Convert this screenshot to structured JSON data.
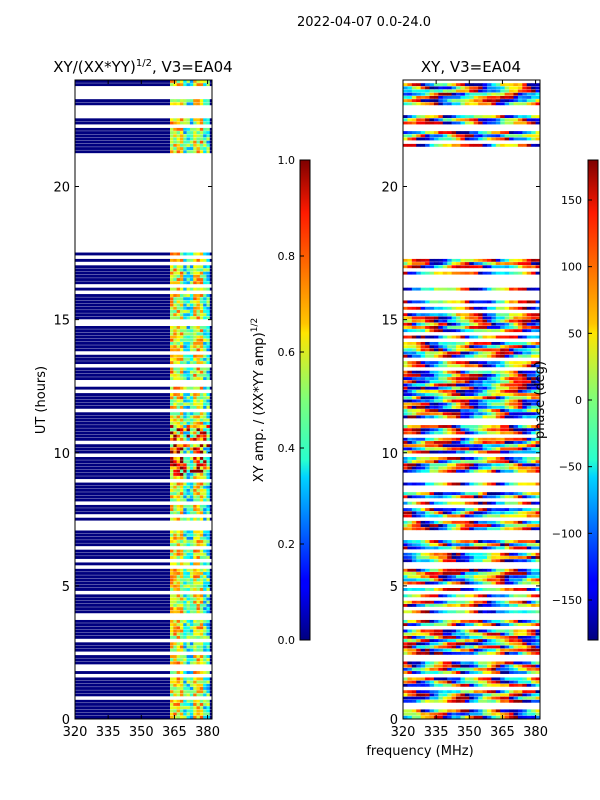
{
  "suptitle": "2022-04-07 0.0-24.0",
  "shared_xlabel": "frequency (MHz)",
  "chart_data": [
    {
      "type": "heatmap",
      "title_main": "XY/(XX*YY)",
      "title_sup": "1/2",
      "title_tail": ", V3=EA04",
      "ylabel": "UT (hours)",
      "xlim": [
        320,
        382
      ],
      "ylim": [
        0,
        24
      ],
      "x_ticks": [
        320,
        335,
        350,
        365,
        380
      ],
      "y_ticks": [
        0,
        5,
        10,
        15,
        20
      ],
      "gap_ranges_hours": [
        [
          17.4,
          20.2
        ],
        [
          20.2,
          21.2
        ],
        [
          22.6,
          23.0
        ]
      ],
      "active_channel_range_mhz": [
        363,
        381
      ],
      "colorbar": {
        "label_main": "XY amp. / (XX*YY amp)",
        "label_sup": "1/2",
        "range": [
          0.0,
          1.0
        ],
        "ticks": [
          "0.0",
          "0.2",
          "0.4",
          "0.6",
          "0.8",
          "1.0"
        ],
        "tick_values": [
          0.0,
          0.2,
          0.4,
          0.6,
          0.8,
          1.0
        ]
      }
    },
    {
      "type": "heatmap",
      "title": "XY, V3=EA04",
      "xlim": [
        320,
        382
      ],
      "ylim": [
        0,
        24
      ],
      "x_ticks": [
        320,
        335,
        350,
        365,
        380
      ],
      "y_ticks": [
        0,
        5,
        10,
        15,
        20
      ],
      "gap_ranges_hours": [
        [
          17.4,
          20.2
        ],
        [
          20.2,
          21.2
        ],
        [
          22.6,
          23.0
        ]
      ],
      "colorbar": {
        "label": "phase (deg)",
        "range": [
          -180,
          180
        ],
        "ticks": [
          "150",
          "100",
          "50",
          "0",
          "−50",
          "−100",
          "−150"
        ],
        "tick_values": [
          150,
          100,
          50,
          0,
          -50,
          -100,
          -150
        ]
      }
    }
  ]
}
